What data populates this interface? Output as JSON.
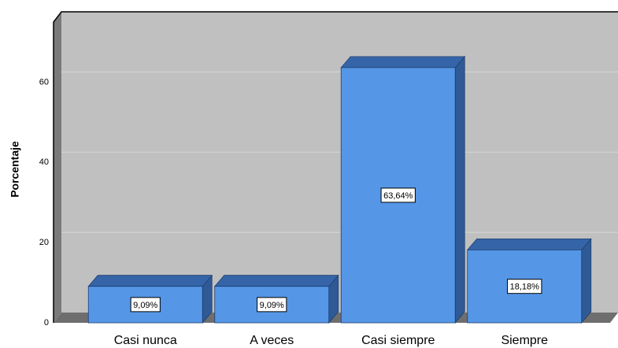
{
  "chart_data": {
    "type": "bar3d",
    "y_label": "Porcentaje",
    "categories": [
      "Casi nunca",
      "A veces",
      "Casi siempre",
      "Siempre"
    ],
    "values": [
      9.09,
      9.09,
      63.64,
      18.18
    ],
    "value_labels": [
      "9,09%",
      "9,09%",
      "63,64%",
      "18,18%"
    ],
    "color": "#5596e6",
    "ylim": [
      0,
      75
    ],
    "yticks": [
      0,
      20,
      40,
      60
    ],
    "grid": true
  }
}
